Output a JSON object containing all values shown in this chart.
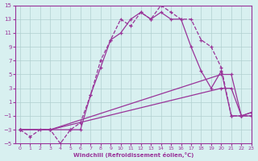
{
  "xlabel": "Windchill (Refroidissement éolien,°C)",
  "background_color": "#d8f0f0",
  "grid_color": "#b0d0d0",
  "line_color": "#993399",
  "xlim": [
    -0.5,
    23
  ],
  "ylim": [
    -5,
    15
  ],
  "xticks": [
    0,
    1,
    2,
    3,
    4,
    5,
    6,
    7,
    8,
    9,
    10,
    11,
    12,
    13,
    14,
    15,
    16,
    17,
    18,
    19,
    20,
    21,
    22,
    23
  ],
  "yticks": [
    -5,
    -3,
    -1,
    1,
    3,
    5,
    7,
    9,
    11,
    13,
    15
  ],
  "curve1_x": [
    0,
    1,
    2,
    3,
    4,
    5,
    6,
    7,
    8,
    9,
    10,
    11,
    12,
    13,
    14,
    15,
    16,
    17,
    18,
    19,
    20,
    21,
    22,
    23
  ],
  "curve1_y": [
    -3,
    -4,
    -3,
    -3,
    -5,
    -3,
    -2,
    2,
    7,
    10,
    13,
    12,
    14,
    13,
    15,
    14,
    13,
    13,
    10,
    9,
    6,
    -1,
    -1,
    -1
  ],
  "curve2_x": [
    0,
    3,
    5,
    6,
    7,
    8,
    9,
    10,
    11,
    12,
    13,
    14,
    15,
    16,
    17,
    18,
    19,
    20,
    21,
    22,
    23
  ],
  "curve2_y": [
    -3,
    -3,
    -3,
    -3,
    2,
    6,
    10,
    11,
    13,
    14,
    13,
    14,
    13,
    13,
    9,
    5.5,
    3,
    5.5,
    -1,
    -1,
    -0.5
  ],
  "curve3_x": [
    0,
    3,
    20,
    21,
    22,
    23
  ],
  "curve3_y": [
    -3,
    -3,
    3,
    3,
    -1,
    -1
  ],
  "curve4_x": [
    0,
    3,
    20,
    21,
    22,
    23
  ],
  "curve4_y": [
    -3,
    -3,
    5,
    5,
    -1,
    -0.5
  ]
}
